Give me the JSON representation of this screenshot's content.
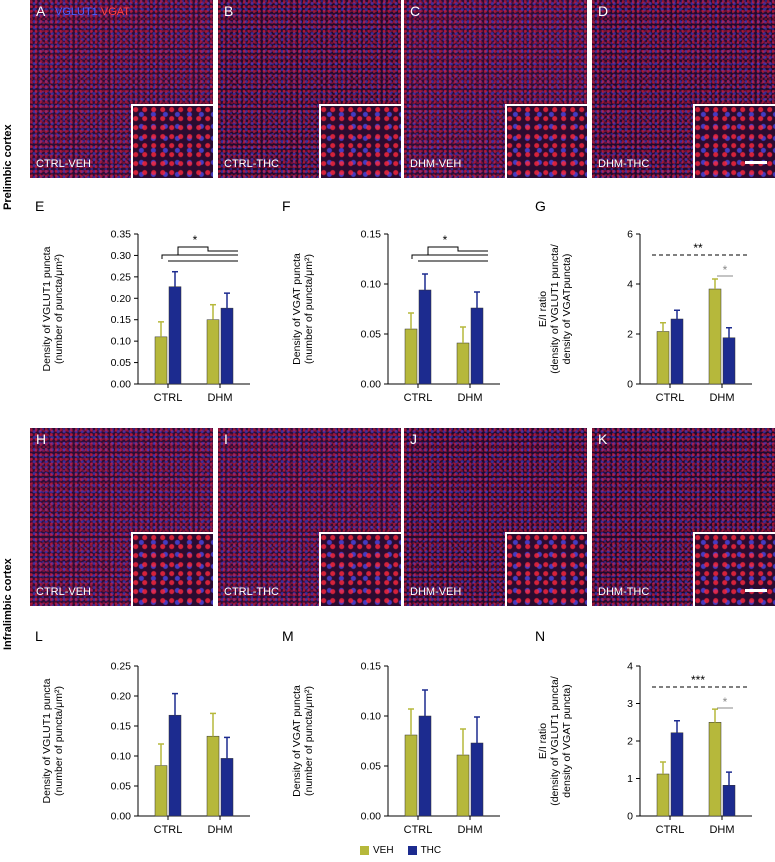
{
  "colors": {
    "veh": "#b6b83b",
    "thc": "#1c2b8f",
    "vglut1": "#4f5dff",
    "vgat": "#ff4040"
  },
  "stain_labels": {
    "vglut1": "VGLUT1",
    "vgat": "VGAT"
  },
  "regions": {
    "prelimbic": "Prelimbic cortex",
    "infralimbic": "Infralimbic cortex"
  },
  "micrographs": {
    "top": [
      {
        "panel": "A",
        "condition": "CTRL-VEH"
      },
      {
        "panel": "B",
        "condition": "CTRL-THC"
      },
      {
        "panel": "C",
        "condition": "DHM-VEH"
      },
      {
        "panel": "D",
        "condition": "DHM-THC"
      }
    ],
    "bottom": [
      {
        "panel": "H",
        "condition": "CTRL-VEH"
      },
      {
        "panel": "I",
        "condition": "CTRL-THC"
      },
      {
        "panel": "J",
        "condition": "DHM-VEH"
      },
      {
        "panel": "K",
        "condition": "DHM-THC"
      }
    ]
  },
  "legend": {
    "veh": "VEH",
    "thc": "THC"
  },
  "chart_data": [
    {
      "panel": "E",
      "type": "bar",
      "categories": [
        "CTRL",
        "DHM"
      ],
      "ylabel": [
        "Density of VGLUT1 puncta",
        "(number of puncta/μm²)"
      ],
      "ylim": [
        0,
        0.35
      ],
      "yticks": [
        "0.00",
        "0.05",
        "0.10",
        "0.15",
        "0.20",
        "0.25",
        "0.30",
        "0.35"
      ],
      "series": [
        {
          "name": "VEH",
          "values": [
            0.11,
            0.15
          ],
          "errors": [
            0.035,
            0.035
          ]
        },
        {
          "name": "THC",
          "values": [
            0.227,
            0.177
          ],
          "errors": [
            0.035,
            0.035
          ]
        }
      ],
      "annotations": [
        {
          "text": "*",
          "type": "bracket"
        }
      ]
    },
    {
      "panel": "F",
      "type": "bar",
      "categories": [
        "CTRL",
        "DHM"
      ],
      "ylabel": [
        "Density of VGAT puncta",
        "(number of puncta/μm²)"
      ],
      "ylim": [
        0,
        0.15
      ],
      "yticks": [
        "0.00",
        "0.05",
        "0.10",
        "0.15"
      ],
      "series": [
        {
          "name": "VEH",
          "values": [
            0.055,
            0.041
          ],
          "errors": [
            0.016,
            0.016
          ]
        },
        {
          "name": "THC",
          "values": [
            0.094,
            0.076
          ],
          "errors": [
            0.016,
            0.016
          ]
        }
      ],
      "annotations": [
        {
          "text": "*",
          "type": "bracket"
        }
      ]
    },
    {
      "panel": "G",
      "type": "bar",
      "categories": [
        "CTRL",
        "DHM"
      ],
      "ylabel": [
        "E/I ratio",
        "(density of VGLUT1 puncta/",
        "density of VGATpuncta)"
      ],
      "ylim": [
        0,
        6
      ],
      "yticks": [
        "0",
        "2",
        "4",
        "6"
      ],
      "series": [
        {
          "name": "VEH",
          "values": [
            2.1,
            3.8
          ],
          "errors": [
            0.35,
            0.4
          ]
        },
        {
          "name": "THC",
          "values": [
            2.6,
            1.85
          ],
          "errors": [
            0.35,
            0.4
          ]
        }
      ],
      "annotations": [
        {
          "text": "**",
          "type": "dashed"
        },
        {
          "text": "*",
          "type": "pair"
        }
      ]
    },
    {
      "panel": "L",
      "type": "bar",
      "categories": [
        "CTRL",
        "DHM"
      ],
      "ylabel": [
        "Density of VGLUT1 puncta",
        "(number of puncta/μm²)"
      ],
      "ylim": [
        0,
        0.25
      ],
      "yticks": [
        "0.00",
        "0.05",
        "0.10",
        "0.15",
        "0.20",
        "0.25"
      ],
      "series": [
        {
          "name": "VEH",
          "values": [
            0.084,
            0.133
          ],
          "errors": [
            0.036,
            0.038
          ]
        },
        {
          "name": "THC",
          "values": [
            0.168,
            0.096
          ],
          "errors": [
            0.036,
            0.035
          ]
        }
      ],
      "annotations": []
    },
    {
      "panel": "M",
      "type": "bar",
      "categories": [
        "CTRL",
        "DHM"
      ],
      "ylabel": [
        "Density of VGAT puncta",
        "(number of puncta/μm²)"
      ],
      "ylim": [
        0,
        0.15
      ],
      "yticks": [
        "0.00",
        "0.05",
        "0.10",
        "0.15"
      ],
      "series": [
        {
          "name": "VEH",
          "values": [
            0.081,
            0.061
          ],
          "errors": [
            0.026,
            0.026
          ]
        },
        {
          "name": "THC",
          "values": [
            0.1,
            0.073
          ],
          "errors": [
            0.026,
            0.026
          ]
        }
      ],
      "annotations": []
    },
    {
      "panel": "N",
      "type": "bar",
      "categories": [
        "CTRL",
        "DHM"
      ],
      "ylabel": [
        "E/I ratio",
        "(density of VGLUT1 puncta/",
        "density of VGAT puncta)"
      ],
      "ylim": [
        0,
        4
      ],
      "yticks": [
        "0",
        "1",
        "2",
        "3",
        "4"
      ],
      "series": [
        {
          "name": "VEH",
          "values": [
            1.12,
            2.5
          ],
          "errors": [
            0.32,
            0.35
          ]
        },
        {
          "name": "THC",
          "values": [
            2.22,
            0.82
          ],
          "errors": [
            0.32,
            0.35
          ]
        }
      ],
      "annotations": [
        {
          "text": "***",
          "type": "dashed"
        },
        {
          "text": "*",
          "type": "pair"
        }
      ]
    }
  ]
}
